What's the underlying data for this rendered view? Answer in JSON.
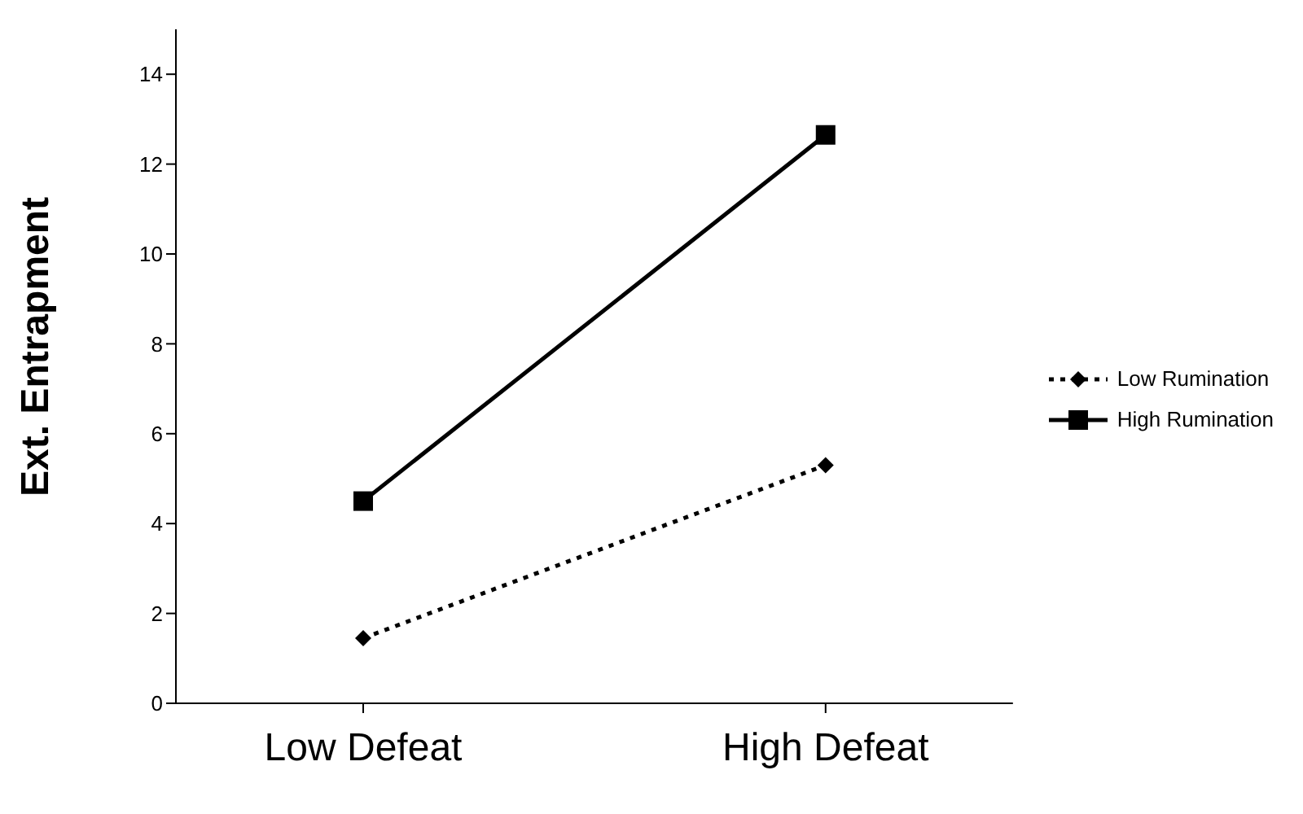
{
  "chart_data": {
    "type": "line",
    "ylabel": "Ext. Entrapment",
    "categories": [
      "Low Defeat",
      "High Defeat"
    ],
    "series": [
      {
        "name": "Low Rumination",
        "color": "#000000",
        "values": [
          1.45,
          5.3
        ],
        "marker": "diamond",
        "line_style": "dotted"
      },
      {
        "name": "High Rumination",
        "color": "#000000",
        "values": [
          4.5,
          12.65
        ],
        "marker": "square",
        "line_style": "solid"
      }
    ],
    "ylim": [
      0,
      15
    ],
    "yticks": [
      0,
      2,
      4,
      6,
      8,
      10,
      12,
      14
    ],
    "grid": false,
    "legend": "right"
  }
}
